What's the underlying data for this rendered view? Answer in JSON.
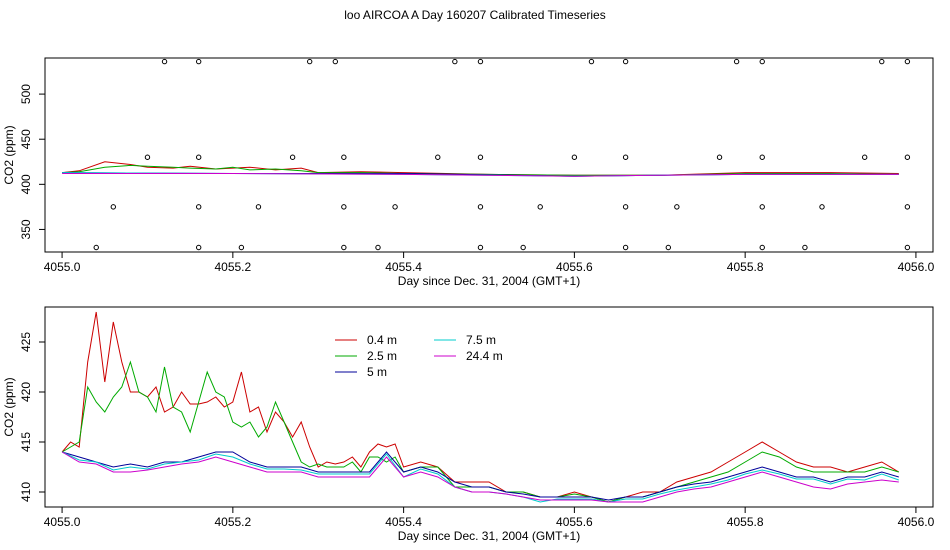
{
  "title": "loo AIRCOA A  Day 160207  Calibrated Timeseries",
  "chart_data": [
    {
      "type": "line",
      "xlabel": "Day since Dec. 31, 2004 (GMT+1)",
      "ylabel": "CO2 (ppm)",
      "xlim": [
        4054.98,
        4056.02
      ],
      "ylim": [
        325,
        540
      ],
      "x_ticks": [
        "4055.0",
        "4055.2",
        "4055.4",
        "4055.6",
        "4055.8",
        "4056.0"
      ],
      "y_ticks": [
        "350",
        "400",
        "450",
        "500"
      ],
      "series": [
        {
          "color": "#cc0000",
          "x": [
            4055.0,
            4055.02,
            4055.05,
            4055.08,
            4055.1,
            4055.13,
            4055.15,
            4055.18,
            4055.2,
            4055.22,
            4055.25,
            4055.28,
            4055.3,
            4055.35,
            4055.4,
            4055.5,
            4055.6,
            4055.7,
            4055.8,
            4055.9,
            4055.98
          ],
          "y": [
            413,
            415,
            425,
            422,
            419,
            418,
            420,
            417,
            418,
            419,
            416,
            418,
            413,
            414,
            413,
            411,
            410,
            410,
            413,
            413,
            412
          ]
        },
        {
          "color": "#00aa00",
          "x": [
            4055.0,
            4055.02,
            4055.05,
            4055.08,
            4055.1,
            4055.13,
            4055.15,
            4055.18,
            4055.2,
            4055.22,
            4055.25,
            4055.28,
            4055.3,
            4055.35,
            4055.4,
            4055.5,
            4055.6,
            4055.7,
            4055.8,
            4055.9,
            4055.98
          ],
          "y": [
            413,
            414,
            419,
            421,
            420,
            419,
            418,
            417,
            419,
            416,
            417,
            415,
            413,
            413,
            412,
            411,
            410,
            410,
            412,
            412,
            411
          ]
        },
        {
          "color": "#000099",
          "x": [
            4055.0,
            4055.2,
            4055.4,
            4055.6,
            4055.8,
            4055.98
          ],
          "y": [
            413,
            412,
            412,
            409,
            411,
            411
          ]
        },
        {
          "color": "#00cccc",
          "x": [
            4055.0,
            4055.2,
            4055.4,
            4055.6,
            4055.8,
            4055.98
          ],
          "y": [
            413,
            412,
            411,
            409,
            411,
            411
          ]
        },
        {
          "color": "#cc00cc",
          "x": [
            4055.0,
            4055.2,
            4055.4,
            4055.6,
            4055.8,
            4055.98
          ],
          "y": [
            412,
            412,
            411,
            409,
            411,
            411
          ]
        }
      ],
      "markers": [
        {
          "x": [
            4055.12,
            4055.16,
            4055.29,
            4055.32,
            4055.46,
            4055.49,
            4055.62,
            4055.66,
            4055.79,
            4055.82,
            4055.96,
            4055.99
          ],
          "y": 536
        },
        {
          "x": [
            4055.1,
            4055.16,
            4055.27,
            4055.33,
            4055.44,
            4055.49,
            4055.6,
            4055.66,
            4055.77,
            4055.82,
            4055.94,
            4055.99
          ],
          "y": 430
        },
        {
          "x": [
            4055.06,
            4055.16,
            4055.23,
            4055.33,
            4055.39,
            4055.49,
            4055.56,
            4055.66,
            4055.72,
            4055.82,
            4055.89,
            4055.99
          ],
          "y": 375
        },
        {
          "x": [
            4055.04,
            4055.16,
            4055.21,
            4055.33,
            4055.37,
            4055.49,
            4055.54,
            4055.66,
            4055.71,
            4055.82,
            4055.87,
            4055.99
          ],
          "y": 330
        }
      ]
    },
    {
      "type": "line",
      "xlabel": "Day since Dec. 31, 2004 (GMT+1)",
      "ylabel": "CO2 (ppm)",
      "xlim": [
        4054.98,
        4056.02
      ],
      "ylim": [
        408.5,
        428.5
      ],
      "x_ticks": [
        "4055.0",
        "4055.2",
        "4055.4",
        "4055.6",
        "4055.8",
        "4056.0"
      ],
      "y_ticks": [
        "410",
        "415",
        "420",
        "425"
      ],
      "legend": {
        "placement": "top-left",
        "entries": [
          {
            "label": "0.4 m",
            "color": "#cc0000"
          },
          {
            "label": "2.5 m",
            "color": "#00aa00"
          },
          {
            "label": "5 m",
            "color": "#000099"
          },
          {
            "label": "7.5 m",
            "color": "#00cccc"
          },
          {
            "label": "24.4 m",
            "color": "#cc00cc"
          }
        ]
      },
      "series": [
        {
          "name": "0.4 m",
          "color": "#cc0000",
          "x": [
            4055.0,
            4055.01,
            4055.02,
            4055.03,
            4055.04,
            4055.05,
            4055.06,
            4055.07,
            4055.08,
            4055.09,
            4055.1,
            4055.11,
            4055.12,
            4055.13,
            4055.14,
            4055.15,
            4055.16,
            4055.17,
            4055.18,
            4055.19,
            4055.2,
            4055.21,
            4055.22,
            4055.23,
            4055.24,
            4055.25,
            4055.26,
            4055.27,
            4055.28,
            4055.29,
            4055.3,
            4055.31,
            4055.32,
            4055.33,
            4055.34,
            4055.35,
            4055.36,
            4055.37,
            4055.38,
            4055.39,
            4055.4,
            4055.42,
            4055.44,
            4055.46,
            4055.48,
            4055.5,
            4055.52,
            4055.54,
            4055.56,
            4055.58,
            4055.6,
            4055.62,
            4055.64,
            4055.66,
            4055.68,
            4055.7,
            4055.72,
            4055.74,
            4055.76,
            4055.78,
            4055.8,
            4055.82,
            4055.84,
            4055.86,
            4055.88,
            4055.9,
            4055.92,
            4055.94,
            4055.96,
            4055.98
          ],
          "y": [
            414,
            415,
            414.5,
            423,
            428,
            421,
            427,
            423,
            420,
            420,
            419.5,
            420.5,
            418,
            418.5,
            420,
            418.8,
            418.8,
            419,
            419.5,
            418.5,
            419,
            422,
            418,
            418.5,
            416,
            418,
            417,
            415.5,
            417,
            414.5,
            412.5,
            413,
            412.8,
            413,
            413.5,
            412.5,
            414,
            414.8,
            414.5,
            414.8,
            412.5,
            413,
            412.5,
            411,
            411,
            411,
            410,
            410,
            409.5,
            409.5,
            410,
            409.5,
            409,
            409.5,
            410,
            410,
            411,
            411.5,
            412,
            413,
            414,
            415,
            414,
            413,
            412.5,
            412.5,
            412,
            412.5,
            413,
            412
          ]
        },
        {
          "name": "2.5 m",
          "color": "#00aa00",
          "x": [
            4055.0,
            4055.01,
            4055.02,
            4055.03,
            4055.04,
            4055.05,
            4055.06,
            4055.07,
            4055.08,
            4055.09,
            4055.1,
            4055.11,
            4055.12,
            4055.13,
            4055.14,
            4055.15,
            4055.16,
            4055.17,
            4055.18,
            4055.19,
            4055.2,
            4055.21,
            4055.22,
            4055.23,
            4055.24,
            4055.25,
            4055.26,
            4055.27,
            4055.28,
            4055.29,
            4055.3,
            4055.31,
            4055.32,
            4055.33,
            4055.34,
            4055.35,
            4055.36,
            4055.37,
            4055.38,
            4055.39,
            4055.4,
            4055.42,
            4055.44,
            4055.46,
            4055.48,
            4055.5,
            4055.52,
            4055.54,
            4055.56,
            4055.58,
            4055.6,
            4055.62,
            4055.64,
            4055.66,
            4055.68,
            4055.7,
            4055.72,
            4055.74,
            4055.76,
            4055.78,
            4055.8,
            4055.82,
            4055.84,
            4055.86,
            4055.88,
            4055.9,
            4055.92,
            4055.94,
            4055.96,
            4055.98
          ],
          "y": [
            414,
            414.5,
            415,
            420.5,
            419,
            418,
            419.5,
            420.5,
            423,
            420,
            419.5,
            418,
            422.5,
            418.5,
            418,
            416,
            419,
            422,
            420,
            419.5,
            417,
            416.5,
            417,
            415.5,
            416.5,
            419,
            417,
            415,
            413,
            412.5,
            412.8,
            412.5,
            412.5,
            412.5,
            413,
            412,
            413.5,
            413.5,
            413,
            413.5,
            412,
            412.5,
            412.5,
            410.5,
            410.5,
            410.5,
            410,
            410,
            409.5,
            409.5,
            409.8,
            409.5,
            409,
            409.5,
            409.5,
            410,
            410.5,
            411,
            411.5,
            412,
            413,
            414,
            413.5,
            412.5,
            412,
            412,
            412,
            412,
            412.5,
            412
          ]
        },
        {
          "name": "5 m",
          "color": "#000099",
          "x": [
            4055.0,
            4055.02,
            4055.04,
            4055.06,
            4055.08,
            4055.1,
            4055.12,
            4055.14,
            4055.16,
            4055.18,
            4055.2,
            4055.22,
            4055.24,
            4055.26,
            4055.28,
            4055.3,
            4055.32,
            4055.34,
            4055.36,
            4055.38,
            4055.4,
            4055.42,
            4055.44,
            4055.46,
            4055.48,
            4055.5,
            4055.52,
            4055.54,
            4055.56,
            4055.58,
            4055.6,
            4055.62,
            4055.64,
            4055.66,
            4055.68,
            4055.7,
            4055.72,
            4055.74,
            4055.76,
            4055.78,
            4055.8,
            4055.82,
            4055.84,
            4055.86,
            4055.88,
            4055.9,
            4055.92,
            4055.94,
            4055.96,
            4055.98
          ],
          "y": [
            414,
            413.5,
            413,
            412.5,
            412.8,
            412.5,
            413,
            413,
            413.5,
            414,
            414,
            413,
            412.5,
            412.5,
            412.5,
            412,
            412,
            412,
            412,
            414,
            412,
            412.5,
            412,
            411,
            410.5,
            410.5,
            410,
            409.8,
            409.5,
            409.5,
            409.5,
            409.5,
            409.2,
            409.5,
            409.5,
            410,
            410.5,
            410.8,
            411,
            411.5,
            412,
            412.5,
            412,
            411.5,
            411.5,
            411,
            411.5,
            411.5,
            412,
            411.5
          ]
        },
        {
          "name": "7.5 m",
          "color": "#00cccc",
          "x": [
            4055.0,
            4055.02,
            4055.04,
            4055.06,
            4055.08,
            4055.1,
            4055.12,
            4055.14,
            4055.16,
            4055.18,
            4055.2,
            4055.22,
            4055.24,
            4055.26,
            4055.28,
            4055.3,
            4055.32,
            4055.34,
            4055.36,
            4055.38,
            4055.4,
            4055.42,
            4055.44,
            4055.46,
            4055.48,
            4055.5,
            4055.52,
            4055.54,
            4055.56,
            4055.58,
            4055.6,
            4055.62,
            4055.64,
            4055.66,
            4055.68,
            4055.7,
            4055.72,
            4055.74,
            4055.76,
            4055.78,
            4055.8,
            4055.82,
            4055.84,
            4055.86,
            4055.88,
            4055.9,
            4055.92,
            4055.94,
            4055.96,
            4055.98
          ],
          "y": [
            414,
            413.2,
            413,
            412.2,
            412.5,
            412.3,
            412.8,
            413,
            413.2,
            413.8,
            413.5,
            412.8,
            412.3,
            412.3,
            412.2,
            411.8,
            411.8,
            411.8,
            411.8,
            413.8,
            411.5,
            412.3,
            411.8,
            410.5,
            410,
            410,
            409.8,
            409.5,
            409,
            409.3,
            409.3,
            409.3,
            409,
            409.3,
            409.3,
            409.8,
            410.2,
            410.5,
            410.8,
            411.2,
            411.8,
            412.2,
            411.8,
            411.3,
            411.3,
            410.8,
            411.3,
            411.2,
            411.8,
            411.2
          ]
        },
        {
          "name": "24.4 m",
          "color": "#cc00cc",
          "x": [
            4055.0,
            4055.02,
            4055.04,
            4055.06,
            4055.08,
            4055.1,
            4055.12,
            4055.14,
            4055.16,
            4055.18,
            4055.2,
            4055.22,
            4055.24,
            4055.26,
            4055.28,
            4055.3,
            4055.32,
            4055.34,
            4055.36,
            4055.38,
            4055.4,
            4055.42,
            4055.44,
            4055.46,
            4055.48,
            4055.5,
            4055.52,
            4055.54,
            4055.56,
            4055.58,
            4055.6,
            4055.62,
            4055.64,
            4055.66,
            4055.68,
            4055.7,
            4055.72,
            4055.74,
            4055.76,
            4055.78,
            4055.8,
            4055.82,
            4055.84,
            4055.86,
            4055.88,
            4055.9,
            4055.92,
            4055.94,
            4055.96,
            4055.98
          ],
          "y": [
            414,
            413,
            412.8,
            412,
            412,
            412.2,
            412.5,
            412.8,
            413,
            413.5,
            413,
            412.5,
            412,
            412,
            412,
            411.5,
            411.5,
            411.5,
            411.5,
            413.5,
            411.5,
            412,
            411.5,
            410.5,
            410,
            410,
            409.8,
            409.5,
            409.2,
            409.2,
            409.2,
            409.2,
            409,
            409,
            409,
            409.5,
            410,
            410.3,
            410.5,
            411,
            411.5,
            412,
            411.5,
            411,
            410.5,
            410.3,
            410.8,
            411,
            411.2,
            411
          ]
        }
      ]
    }
  ]
}
